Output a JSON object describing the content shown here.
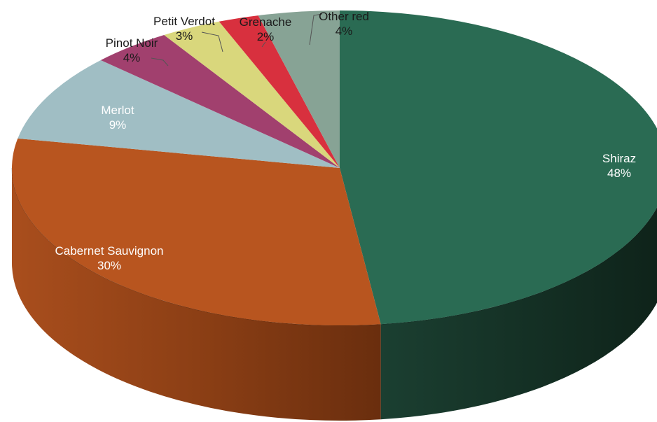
{
  "chart_data": {
    "type": "pie",
    "style": "3d",
    "title": "",
    "legend": "none",
    "slices": [
      {
        "label": "Shiraz",
        "pct_label": "48%",
        "value": 48,
        "color": "#2a6b53",
        "label_color": "#ffffff"
      },
      {
        "label": "Cabernet Sauvignon",
        "pct_label": "30%",
        "value": 30,
        "color": "#b8551f",
        "label_color": "#ffffff"
      },
      {
        "label": "Merlot",
        "pct_label": "9%",
        "value": 9,
        "color": "#a0bec4",
        "label_color": "#ffffff"
      },
      {
        "label": "Pinot Noir",
        "pct_label": "4%",
        "value": 4,
        "color": "#a1406e",
        "label_color": "#1a1a1a"
      },
      {
        "label": "Petit Verdot",
        "pct_label": "3%",
        "value": 3,
        "color": "#d9d77c",
        "label_color": "#1a1a1a"
      },
      {
        "label": "Grenache",
        "pct_label": "2%",
        "value": 2,
        "color": "#d8303e",
        "label_color": "#1a1a1a"
      },
      {
        "label": "Other red",
        "pct_label": "4%",
        "value": 4,
        "color": "#87a395",
        "label_color": "#1a1a1a"
      }
    ]
  }
}
